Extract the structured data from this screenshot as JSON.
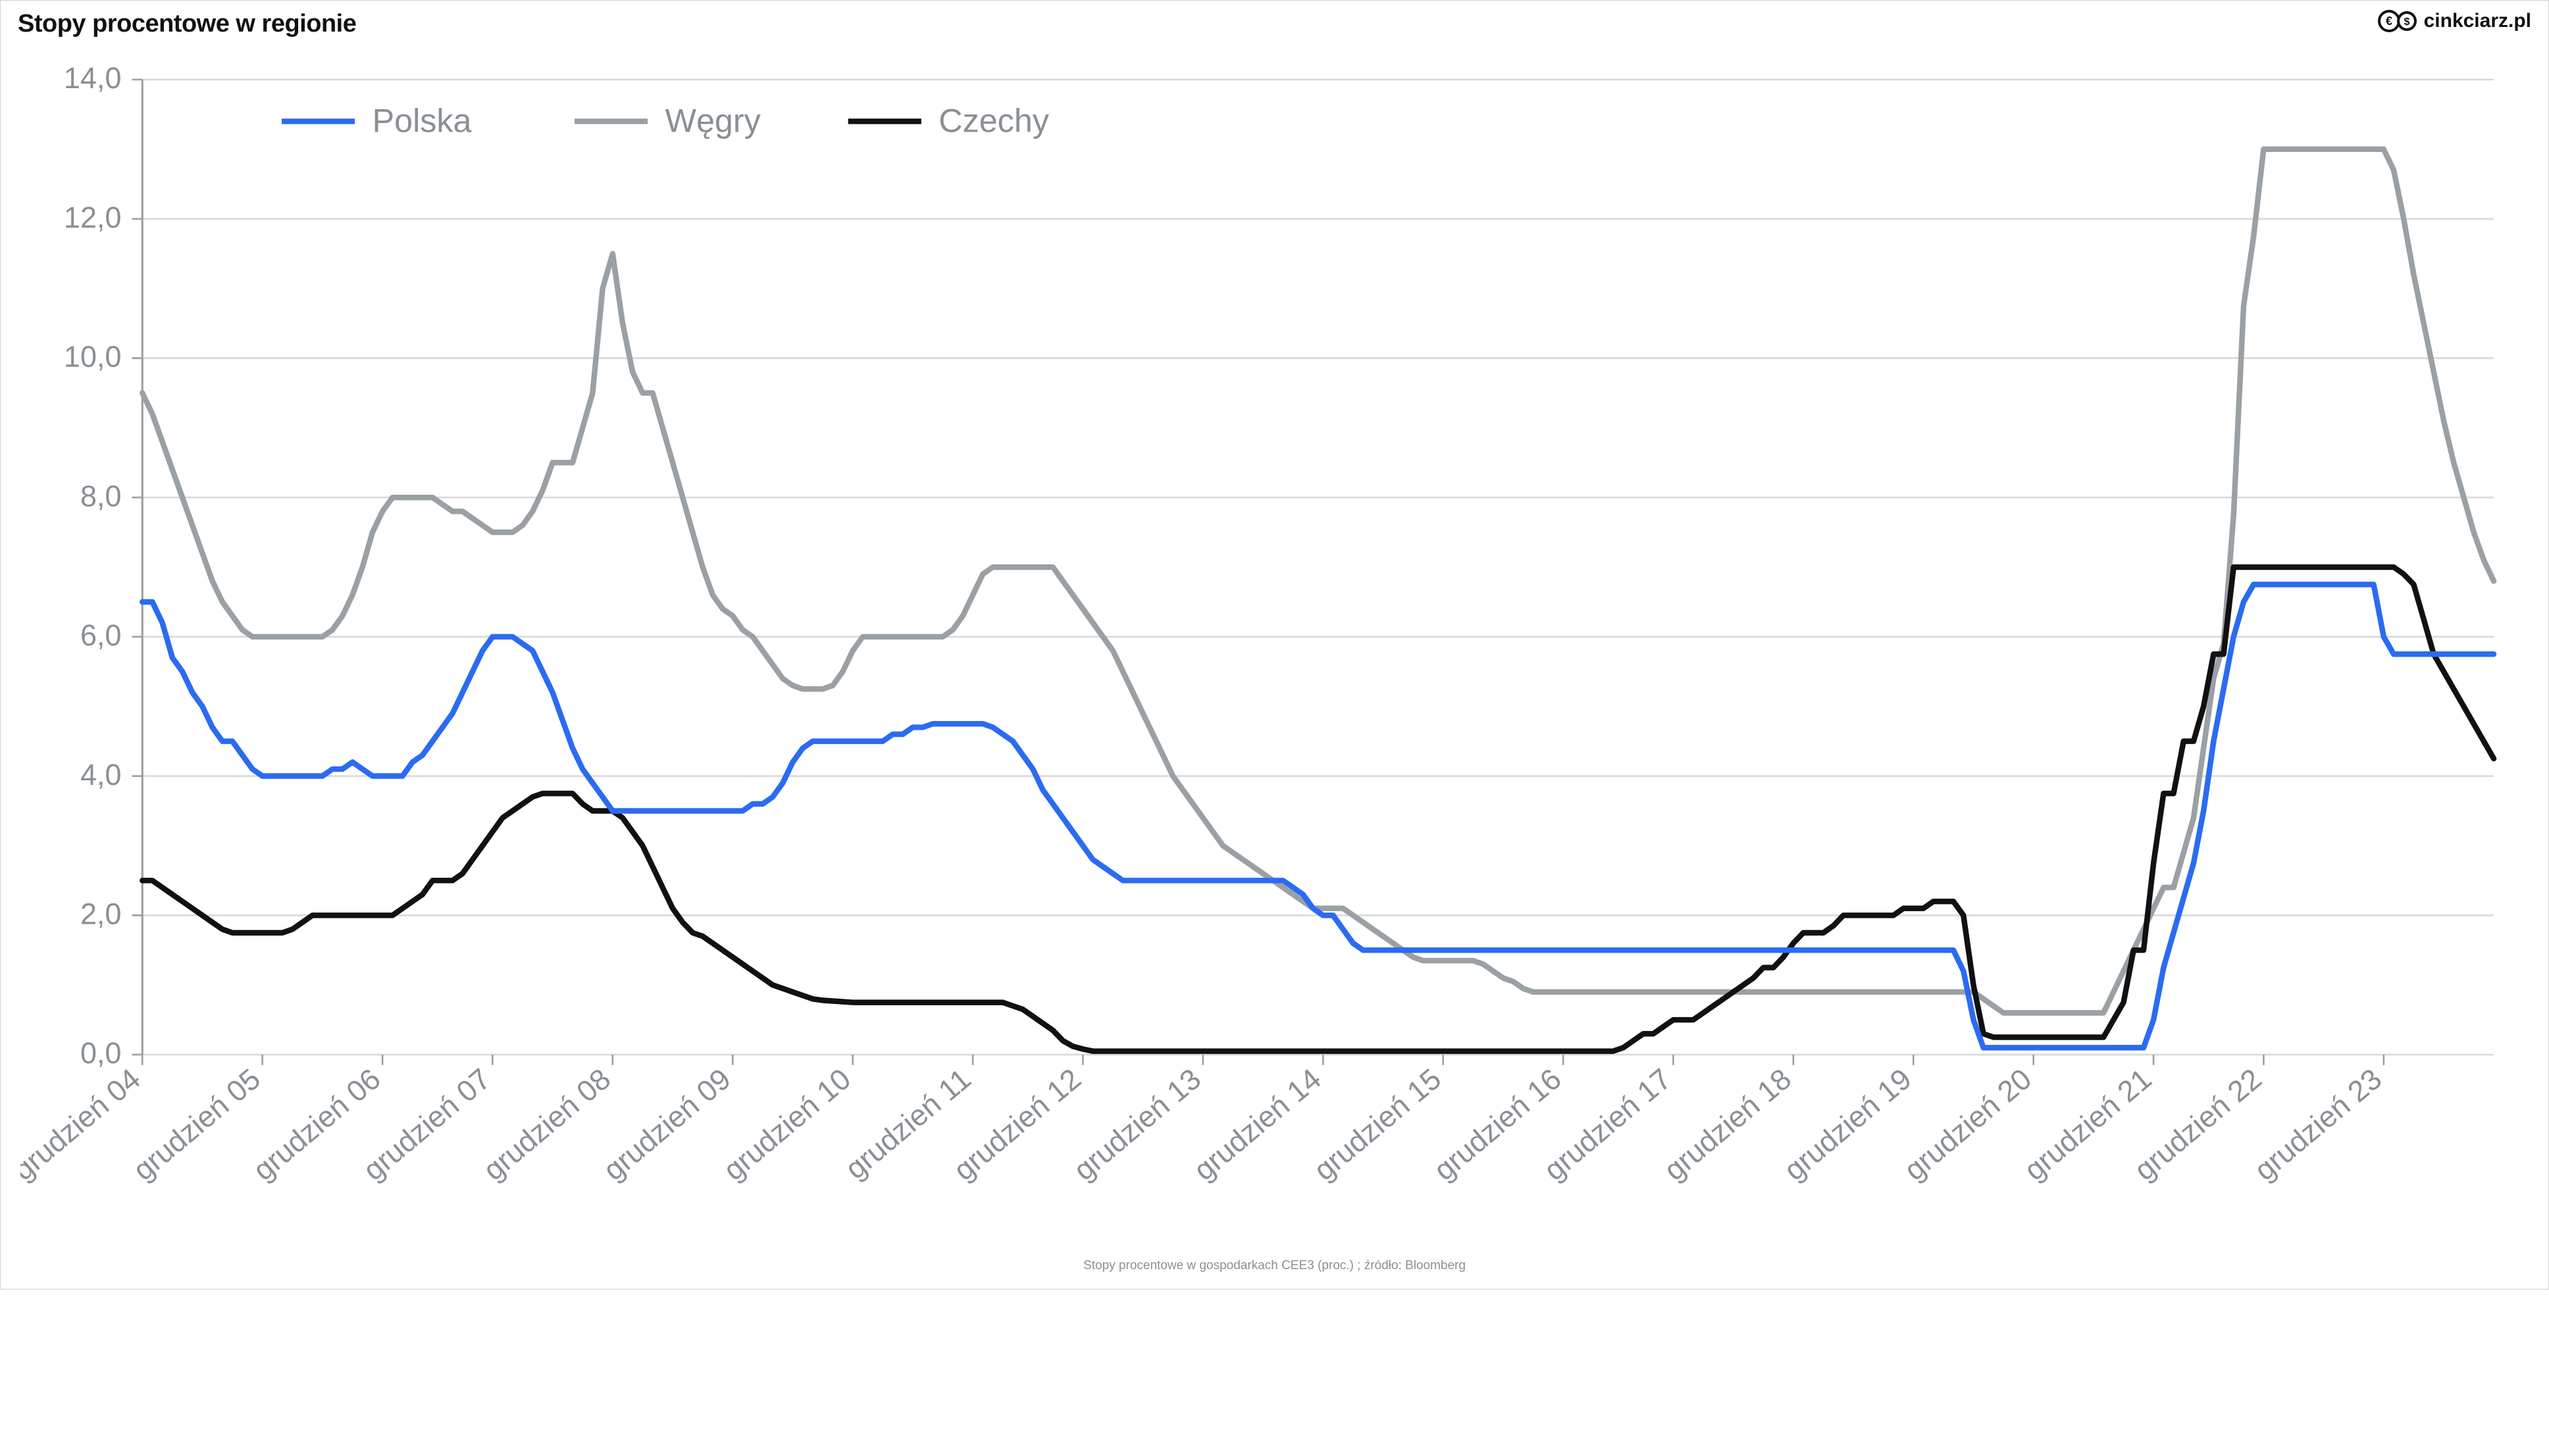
{
  "title": "Stopy procentowe w regionie",
  "brand_text": "cinkciarz.pl",
  "caption": "Stopy procentowe w gospodarkach CEE3 (proc.) ; źródło: Bloomberg",
  "chart": {
    "type": "line",
    "background_color": "#ffffff",
    "border_color": "#d0d0d0",
    "grid_color": "#d9d9d9",
    "axis_color": "#9aa0a4",
    "tick_label_color": "#8a8f94",
    "tick_label_fontsize": 17,
    "title_fontsize": 38,
    "title_color": "#111111",
    "caption_fontsize": 19,
    "caption_color": "#8a8f94",
    "legend": {
      "position": "top-left-inside",
      "fontsize": 19,
      "text_color": "#8a8f94",
      "line_length": 42,
      "items": [
        {
          "key": "polska",
          "label": "Polska"
        },
        {
          "key": "wegry",
          "label": "Węgry"
        },
        {
          "key": "czechy",
          "label": "Czechy"
        }
      ]
    },
    "y": {
      "min": 0.0,
      "max": 14.0,
      "tick_step": 2.0,
      "ticks": [
        "0,0",
        "2,0",
        "4,0",
        "6,0",
        "8,0",
        "10,0",
        "12,0",
        "14,0"
      ]
    },
    "x": {
      "labels": [
        "grudzień 04",
        "grudzień 05",
        "grudzień 06",
        "grudzień 07",
        "grudzień 08",
        "grudzień 09",
        "grudzień 10",
        "grudzień 11",
        "grudzień 12",
        "grudzień 13",
        "grudzień 14",
        "grudzień 15",
        "grudzień 16",
        "grudzień 17",
        "grudzień 18",
        "grudzień 19",
        "grudzień 20",
        "grudzień 21",
        "grudzień 22",
        "grudzień 23"
      ],
      "label_rotation_deg": -40
    },
    "line_width": 3.2,
    "series": {
      "polska": {
        "color": "#2b6bf2",
        "values": [
          6.5,
          6.5,
          6.2,
          5.7,
          5.5,
          5.2,
          5.0,
          4.7,
          4.5,
          4.5,
          4.3,
          4.1,
          4.0,
          4.0,
          4.0,
          4.0,
          4.0,
          4.0,
          4.0,
          4.1,
          4.1,
          4.2,
          4.1,
          4.0,
          4.0,
          4.0,
          4.0,
          4.2,
          4.3,
          4.5,
          4.7,
          4.9,
          5.2,
          5.5,
          5.8,
          6.0,
          6.0,
          6.0,
          5.9,
          5.8,
          5.5,
          5.2,
          4.8,
          4.4,
          4.1,
          3.9,
          3.7,
          3.5,
          3.5,
          3.5,
          3.5,
          3.5,
          3.5,
          3.5,
          3.5,
          3.5,
          3.5,
          3.5,
          3.5,
          3.5,
          3.5,
          3.6,
          3.6,
          3.7,
          3.9,
          4.2,
          4.4,
          4.5,
          4.5,
          4.5,
          4.5,
          4.5,
          4.5,
          4.5,
          4.5,
          4.6,
          4.6,
          4.7,
          4.7,
          4.75,
          4.75,
          4.75,
          4.75,
          4.75,
          4.75,
          4.7,
          4.6,
          4.5,
          4.3,
          4.1,
          3.8,
          3.6,
          3.4,
          3.2,
          3.0,
          2.8,
          2.7,
          2.6,
          2.5,
          2.5,
          2.5,
          2.5,
          2.5,
          2.5,
          2.5,
          2.5,
          2.5,
          2.5,
          2.5,
          2.5,
          2.5,
          2.5,
          2.5,
          2.5,
          2.5,
          2.4,
          2.3,
          2.1,
          2.0,
          2.0,
          1.8,
          1.6,
          1.5,
          1.5,
          1.5,
          1.5,
          1.5,
          1.5,
          1.5,
          1.5,
          1.5,
          1.5,
          1.5,
          1.5,
          1.5,
          1.5,
          1.5,
          1.5,
          1.5,
          1.5,
          1.5,
          1.5,
          1.5,
          1.5,
          1.5,
          1.5,
          1.5,
          1.5,
          1.5,
          1.5,
          1.5,
          1.5,
          1.5,
          1.5,
          1.5,
          1.5,
          1.5,
          1.5,
          1.5,
          1.5,
          1.5,
          1.5,
          1.5,
          1.5,
          1.5,
          1.5,
          1.5,
          1.5,
          1.5,
          1.5,
          1.5,
          1.5,
          1.5,
          1.5,
          1.5,
          1.5,
          1.5,
          1.5,
          1.5,
          1.5,
          1.5,
          1.5,
          1.2,
          0.5,
          0.1,
          0.1,
          0.1,
          0.1,
          0.1,
          0.1,
          0.1,
          0.1,
          0.1,
          0.1,
          0.1,
          0.1,
          0.1,
          0.1,
          0.1,
          0.1,
          0.1,
          0.5,
          1.25,
          1.75,
          2.25,
          2.75,
          3.5,
          4.5,
          5.25,
          6.0,
          6.5,
          6.75,
          6.75,
          6.75,
          6.75,
          6.75,
          6.75,
          6.75,
          6.75,
          6.75,
          6.75,
          6.75,
          6.75,
          6.75,
          6.0,
          5.75,
          5.75,
          5.75,
          5.75,
          5.75,
          5.75,
          5.75,
          5.75,
          5.75,
          5.75,
          5.75
        ]
      },
      "wegry": {
        "color": "#9aa0a4",
        "values": [
          9.5,
          9.2,
          8.8,
          8.4,
          8.0,
          7.6,
          7.2,
          6.8,
          6.5,
          6.3,
          6.1,
          6.0,
          6.0,
          6.0,
          6.0,
          6.0,
          6.0,
          6.0,
          6.0,
          6.1,
          6.3,
          6.6,
          7.0,
          7.5,
          7.8,
          8.0,
          8.0,
          8.0,
          8.0,
          8.0,
          7.9,
          7.8,
          7.8,
          7.7,
          7.6,
          7.5,
          7.5,
          7.5,
          7.6,
          7.8,
          8.1,
          8.5,
          8.5,
          8.5,
          9.0,
          9.5,
          11.0,
          11.5,
          10.5,
          9.8,
          9.5,
          9.5,
          9.0,
          8.5,
          8.0,
          7.5,
          7.0,
          6.6,
          6.4,
          6.3,
          6.1,
          6.0,
          5.8,
          5.6,
          5.4,
          5.3,
          5.25,
          5.25,
          5.25,
          5.3,
          5.5,
          5.8,
          6.0,
          6.0,
          6.0,
          6.0,
          6.0,
          6.0,
          6.0,
          6.0,
          6.0,
          6.1,
          6.3,
          6.6,
          6.9,
          7.0,
          7.0,
          7.0,
          7.0,
          7.0,
          7.0,
          7.0,
          6.8,
          6.6,
          6.4,
          6.2,
          6.0,
          5.8,
          5.5,
          5.2,
          4.9,
          4.6,
          4.3,
          4.0,
          3.8,
          3.6,
          3.4,
          3.2,
          3.0,
          2.9,
          2.8,
          2.7,
          2.6,
          2.5,
          2.4,
          2.3,
          2.2,
          2.1,
          2.1,
          2.1,
          2.1,
          2.0,
          1.9,
          1.8,
          1.7,
          1.6,
          1.5,
          1.4,
          1.35,
          1.35,
          1.35,
          1.35,
          1.35,
          1.35,
          1.3,
          1.2,
          1.1,
          1.05,
          0.95,
          0.9,
          0.9,
          0.9,
          0.9,
          0.9,
          0.9,
          0.9,
          0.9,
          0.9,
          0.9,
          0.9,
          0.9,
          0.9,
          0.9,
          0.9,
          0.9,
          0.9,
          0.9,
          0.9,
          0.9,
          0.9,
          0.9,
          0.9,
          0.9,
          0.9,
          0.9,
          0.9,
          0.9,
          0.9,
          0.9,
          0.9,
          0.9,
          0.9,
          0.9,
          0.9,
          0.9,
          0.9,
          0.9,
          0.9,
          0.9,
          0.9,
          0.9,
          0.9,
          0.9,
          0.9,
          0.8,
          0.7,
          0.6,
          0.6,
          0.6,
          0.6,
          0.6,
          0.6,
          0.6,
          0.6,
          0.6,
          0.6,
          0.6,
          0.9,
          1.2,
          1.5,
          1.8,
          2.1,
          2.4,
          2.4,
          2.9,
          3.4,
          4.4,
          5.4,
          5.9,
          7.75,
          10.75,
          11.75,
          13.0,
          13.0,
          13.0,
          13.0,
          13.0,
          13.0,
          13.0,
          13.0,
          13.0,
          13.0,
          13.0,
          13.0,
          13.0,
          12.7,
          12.0,
          11.2,
          10.5,
          9.8,
          9.1,
          8.5,
          8.0,
          7.5,
          7.1,
          6.8
        ]
      },
      "czechy": {
        "color": "#111111",
        "values": [
          2.5,
          2.5,
          2.4,
          2.3,
          2.2,
          2.1,
          2.0,
          1.9,
          1.8,
          1.75,
          1.75,
          1.75,
          1.75,
          1.75,
          1.75,
          1.8,
          1.9,
          2.0,
          2.0,
          2.0,
          2.0,
          2.0,
          2.0,
          2.0,
          2.0,
          2.0,
          2.1,
          2.2,
          2.3,
          2.5,
          2.5,
          2.5,
          2.6,
          2.8,
          3.0,
          3.2,
          3.4,
          3.5,
          3.6,
          3.7,
          3.75,
          3.75,
          3.75,
          3.75,
          3.6,
          3.5,
          3.5,
          3.5,
          3.4,
          3.2,
          3.0,
          2.7,
          2.4,
          2.1,
          1.9,
          1.75,
          1.7,
          1.6,
          1.5,
          1.4,
          1.3,
          1.2,
          1.1,
          1.0,
          0.95,
          0.9,
          0.85,
          0.8,
          0.78,
          0.77,
          0.76,
          0.75,
          0.75,
          0.75,
          0.75,
          0.75,
          0.75,
          0.75,
          0.75,
          0.75,
          0.75,
          0.75,
          0.75,
          0.75,
          0.75,
          0.75,
          0.75,
          0.7,
          0.65,
          0.55,
          0.45,
          0.35,
          0.2,
          0.12,
          0.08,
          0.05,
          0.05,
          0.05,
          0.05,
          0.05,
          0.05,
          0.05,
          0.05,
          0.05,
          0.05,
          0.05,
          0.05,
          0.05,
          0.05,
          0.05,
          0.05,
          0.05,
          0.05,
          0.05,
          0.05,
          0.05,
          0.05,
          0.05,
          0.05,
          0.05,
          0.05,
          0.05,
          0.05,
          0.05,
          0.05,
          0.05,
          0.05,
          0.05,
          0.05,
          0.05,
          0.05,
          0.05,
          0.05,
          0.05,
          0.05,
          0.05,
          0.05,
          0.05,
          0.05,
          0.05,
          0.05,
          0.05,
          0.05,
          0.05,
          0.05,
          0.05,
          0.05,
          0.05,
          0.1,
          0.2,
          0.3,
          0.3,
          0.4,
          0.5,
          0.5,
          0.5,
          0.6,
          0.7,
          0.8,
          0.9,
          1.0,
          1.1,
          1.25,
          1.25,
          1.4,
          1.6,
          1.75,
          1.75,
          1.75,
          1.85,
          2.0,
          2.0,
          2.0,
          2.0,
          2.0,
          2.0,
          2.1,
          2.1,
          2.1,
          2.2,
          2.2,
          2.2,
          2.0,
          1.0,
          0.3,
          0.25,
          0.25,
          0.25,
          0.25,
          0.25,
          0.25,
          0.25,
          0.25,
          0.25,
          0.25,
          0.25,
          0.25,
          0.5,
          0.75,
          1.5,
          1.5,
          2.75,
          3.75,
          3.75,
          4.5,
          4.5,
          5.0,
          5.75,
          5.75,
          7.0,
          7.0,
          7.0,
          7.0,
          7.0,
          7.0,
          7.0,
          7.0,
          7.0,
          7.0,
          7.0,
          7.0,
          7.0,
          7.0,
          7.0,
          7.0,
          7.0,
          6.9,
          6.75,
          6.25,
          5.75,
          5.5,
          5.25,
          5.0,
          4.75,
          4.5,
          4.25
        ]
      }
    }
  }
}
